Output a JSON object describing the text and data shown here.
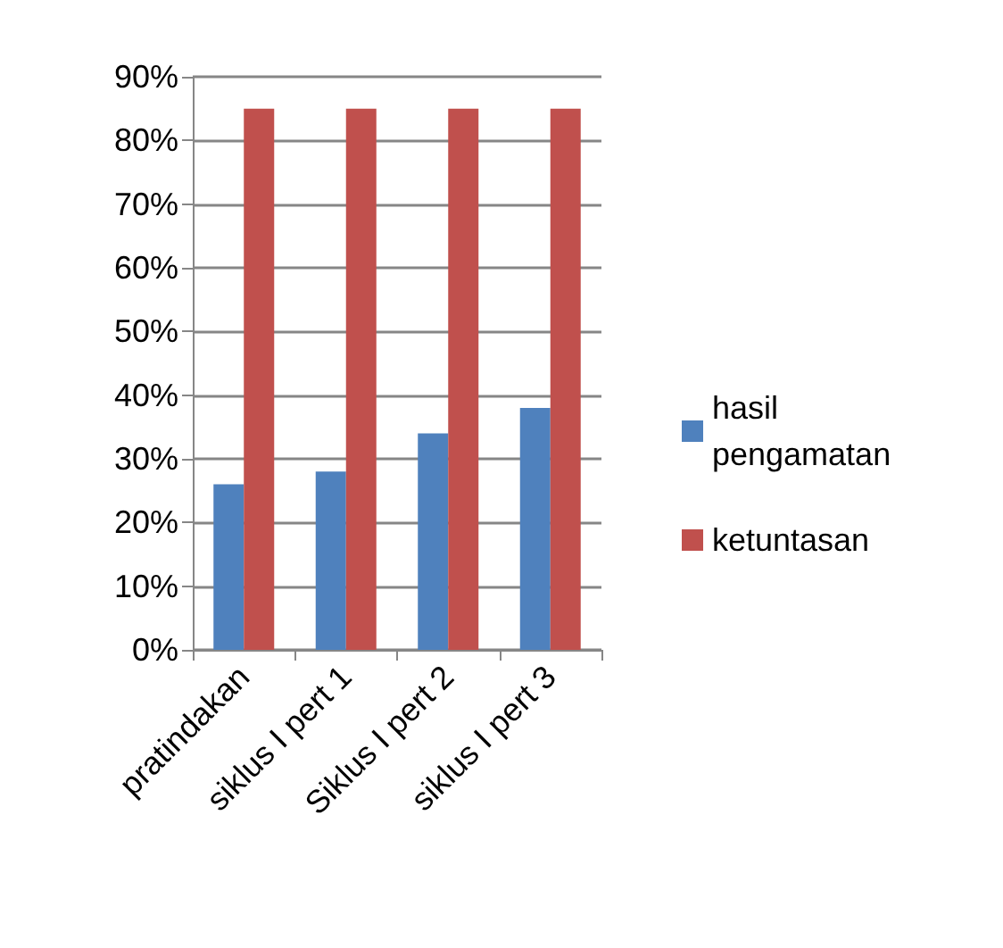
{
  "chart_data": {
    "type": "bar",
    "categories": [
      "pratindakan",
      "siklus I pert 1",
      "Siklus I pert 2",
      "siklus I pert 3"
    ],
    "series": [
      {
        "name": "hasil pengamatan",
        "color": "#4f81bd",
        "values": [
          26,
          28,
          34,
          38
        ]
      },
      {
        "name": "ketuntasan",
        "color": "#c0504d",
        "values": [
          85,
          85,
          85,
          85
        ]
      }
    ],
    "ylim": [
      0,
      90
    ],
    "yticks": [
      {
        "value": 0,
        "label": "0%"
      },
      {
        "value": 10,
        "label": "10%"
      },
      {
        "value": 20,
        "label": "20%"
      },
      {
        "value": 30,
        "label": "30%"
      },
      {
        "value": 40,
        "label": "40%"
      },
      {
        "value": 50,
        "label": "50%"
      },
      {
        "value": 60,
        "label": "60%"
      },
      {
        "value": 70,
        "label": "70%"
      },
      {
        "value": 80,
        "label": "80%"
      },
      {
        "value": 90,
        "label": "90%"
      }
    ],
    "grid": "y",
    "legend": "right"
  }
}
